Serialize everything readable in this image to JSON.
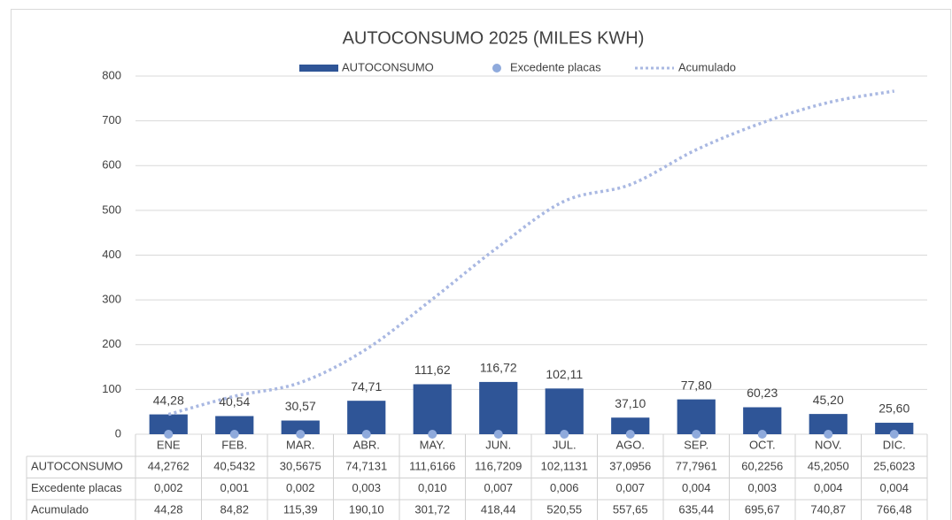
{
  "chart_data": {
    "type": "bar",
    "title": "AUTOCONSUMO 2025 (MILES KWH)",
    "categories": [
      "ENE",
      "FEB.",
      "MAR.",
      "ABR.",
      "MAY.",
      "JUN.",
      "JUL.",
      "AGO.",
      "SEP.",
      "OCT.",
      "NOV.",
      "DIC."
    ],
    "series": [
      {
        "name": "AUTOCONSUMO",
        "type": "bar",
        "color": "#2f5597",
        "values": [
          44.2762,
          40.5432,
          30.5675,
          74.7131,
          111.6166,
          116.7209,
          102.1131,
          37.0956,
          77.7961,
          60.2256,
          45.205,
          25.6023
        ],
        "value_labels": [
          "44,28",
          "40,54",
          "30,57",
          "74,71",
          "111,62",
          "116,72",
          "102,11",
          "37,10",
          "77,80",
          "60,23",
          "45,20",
          "25,60"
        ],
        "table_labels": [
          "44,2762",
          "40,5432",
          "30,5675",
          "74,7131",
          "111,6166",
          "116,7209",
          "102,1131",
          "37,0956",
          "77,7961",
          "60,2256",
          "45,2050",
          "25,6023"
        ]
      },
      {
        "name": "Excedente placas",
        "type": "scatter",
        "color": "#8faadc",
        "values": [
          0.002,
          0.001,
          0.002,
          0.003,
          0.01,
          0.007,
          0.006,
          0.007,
          0.004,
          0.003,
          0.004,
          0.004
        ],
        "table_labels": [
          "0,002",
          "0,001",
          "0,002",
          "0,003",
          "0,010",
          "0,007",
          "0,006",
          "0,007",
          "0,004",
          "0,003",
          "0,004",
          "0,004"
        ]
      },
      {
        "name": "Acumulado",
        "type": "line",
        "color": "#a9b8e2",
        "values": [
          44.28,
          84.82,
          115.39,
          190.1,
          301.72,
          418.44,
          520.55,
          557.65,
          635.44,
          695.67,
          740.87,
          766.48
        ],
        "table_labels": [
          "44,28",
          "84,82",
          "115,39",
          "190,10",
          "301,72",
          "418,44",
          "520,55",
          "557,65",
          "635,44",
          "695,67",
          "740,87",
          "766,48"
        ]
      }
    ],
    "ylim": [
      0,
      800
    ],
    "yticks": [
      0,
      100,
      200,
      300,
      400,
      500,
      600,
      700,
      800
    ],
    "grid": true
  }
}
